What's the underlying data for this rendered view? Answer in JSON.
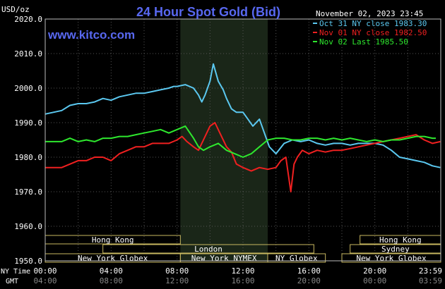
{
  "chart_data": {
    "type": "line",
    "title": "24 Hour Spot Gold (Bid)",
    "source": "www.kitco.com",
    "date_label": "November 02, 2023 23:45",
    "ylabel": "USD/oz",
    "ylim": [
      1950,
      2020
    ],
    "yticks": [
      "2020.0",
      "2010.0",
      "2000.0",
      "1990.0",
      "1980.0",
      "1970.0",
      "1960.0",
      "1950.0"
    ],
    "x_axis_row1_label": "NY Time",
    "x_axis_row2_label": "GMT",
    "xticks_ny": [
      "00:00",
      "04:00",
      "08:00",
      "12:00",
      "16:00",
      "20:00",
      "23:59"
    ],
    "xticks_gmt": [
      "04:00",
      "08:00",
      "12:00",
      "16:00",
      "20:00",
      "00:00",
      "03:59"
    ],
    "xlim_hours": [
      0,
      24
    ],
    "grid": true,
    "legend_position": "top-right",
    "highlight_range_hours": [
      8.2,
      13.5
    ],
    "series": [
      {
        "name": "Oct 31 NY close 1983.30",
        "color": "#5bc8f0",
        "x": [
          0,
          1,
          1.5,
          2,
          2.5,
          3,
          3.5,
          4,
          4.5,
          5,
          5.5,
          6,
          6.5,
          7,
          7.5,
          7.8,
          8,
          8.5,
          9,
          9.3,
          9.5,
          9.7,
          10,
          10.2,
          10.5,
          10.8,
          11,
          11.3,
          11.6,
          12,
          12.3,
          12.6,
          13,
          13.3,
          13.6,
          14,
          14.5,
          15,
          15.5,
          16,
          16.5,
          17,
          17.5,
          18,
          18.5,
          19,
          19.5,
          20,
          20.5,
          21,
          21.5,
          22,
          22.5,
          23,
          23.5,
          23.97
        ],
        "y": [
          1992.5,
          1993.5,
          1995,
          1995.5,
          1995.5,
          1996,
          1997,
          1996.5,
          1997.5,
          1998,
          1998.5,
          1998.5,
          1999,
          1999.5,
          2000,
          2000.5,
          2000.5,
          2001,
          2000,
          1998,
          1996,
          1998,
          2002,
          2007,
          2002,
          1999.5,
          1997,
          1994,
          1993,
          1993,
          1991,
          1989,
          1991,
          1987,
          1983,
          1981,
          1984,
          1985,
          1984.5,
          1985,
          1984,
          1983.5,
          1984,
          1984,
          1983.5,
          1984,
          1984,
          1984,
          1983.5,
          1982,
          1980,
          1979.5,
          1979,
          1978.5,
          1977.5,
          1977
        ]
      },
      {
        "name": "Nov 01 NY close 1982.50",
        "color": "#f02020",
        "x": [
          0,
          1,
          1.5,
          2,
          2.5,
          3,
          3.5,
          4,
          4.5,
          5,
          5.5,
          6,
          6.5,
          7,
          7.5,
          8,
          8.3,
          8.6,
          9,
          9.3,
          9.6,
          10,
          10.3,
          10.6,
          11,
          11.3,
          11.6,
          12,
          12.5,
          13,
          13.5,
          14,
          14.3,
          14.6,
          14.9,
          15.1,
          15.3,
          15.6,
          16,
          16.5,
          17,
          17.5,
          18,
          18.5,
          19,
          19.5,
          20,
          20.5,
          21,
          21.5,
          22,
          22.5,
          23,
          23.5,
          23.97
        ],
        "y": [
          1977,
          1977,
          1978,
          1979,
          1979,
          1980,
          1980,
          1979,
          1981,
          1982,
          1983,
          1983,
          1984,
          1984,
          1984,
          1985,
          1986,
          1984.5,
          1983,
          1982,
          1985,
          1989,
          1990,
          1987,
          1983,
          1981.5,
          1978,
          1977,
          1976,
          1977,
          1976.5,
          1977,
          1979,
          1980,
          1970,
          1978,
          1980,
          1982,
          1981,
          1982,
          1981.5,
          1982,
          1982,
          1982.5,
          1983,
          1983.5,
          1984,
          1984.5,
          1985,
          1985.5,
          1986,
          1986.5,
          1985,
          1984,
          1984.5
        ]
      },
      {
        "name": "Nov 02 Last 1985.50",
        "color": "#2ee82e",
        "x": [
          0,
          1,
          1.5,
          2,
          2.5,
          3,
          3.5,
          4,
          4.5,
          5,
          5.5,
          6,
          6.5,
          7,
          7.5,
          8,
          8.5,
          9,
          9.3,
          9.6,
          10,
          10.5,
          11,
          11.5,
          12,
          12.5,
          13,
          13.5,
          14,
          14.5,
          15,
          15.5,
          16,
          16.5,
          17,
          17.5,
          18,
          18.5,
          19,
          19.5,
          20,
          20.5,
          21,
          21.5,
          22,
          22.5,
          23,
          23.5,
          23.7
        ],
        "y": [
          1984.5,
          1984.5,
          1985.5,
          1984.5,
          1985,
          1984.5,
          1985.5,
          1985.5,
          1986,
          1986,
          1986.5,
          1987,
          1987.5,
          1988,
          1987,
          1988,
          1989,
          1985.5,
          1983,
          1982,
          1983,
          1984,
          1982,
          1981,
          1980,
          1981,
          1983,
          1985,
          1985.5,
          1985.5,
          1985,
          1985,
          1985.5,
          1985.5,
          1985,
          1985.5,
          1985,
          1985.5,
          1985,
          1984.5,
          1985,
          1984.5,
          1985,
          1985,
          1985.5,
          1986,
          1986,
          1985.5,
          1985.5
        ]
      }
    ],
    "market_sessions": [
      {
        "label": "Hong Kong",
        "start_h": 0,
        "end_h": 8.2,
        "row": 0
      },
      {
        "label": "London",
        "start_h": 3.5,
        "end_h": 16.3,
        "row": 1
      },
      {
        "label": "New York Globex",
        "start_h": 0,
        "end_h": 8.2,
        "row": 2
      },
      {
        "label": "New York NYMEX",
        "start_h": 8.2,
        "end_h": 13.5,
        "row": 2
      },
      {
        "label": "NY Globex",
        "start_h": 13.5,
        "end_h": 17.0,
        "row": 2
      },
      {
        "label": "Hong Kong",
        "start_h": 19.1,
        "end_h": 24,
        "row": 0
      },
      {
        "label": "Sydney",
        "start_h": 18.5,
        "end_h": 24,
        "row": 1
      },
      {
        "label": "New York Globex",
        "start_h": 18.0,
        "end_h": 24,
        "row": 2
      }
    ]
  }
}
